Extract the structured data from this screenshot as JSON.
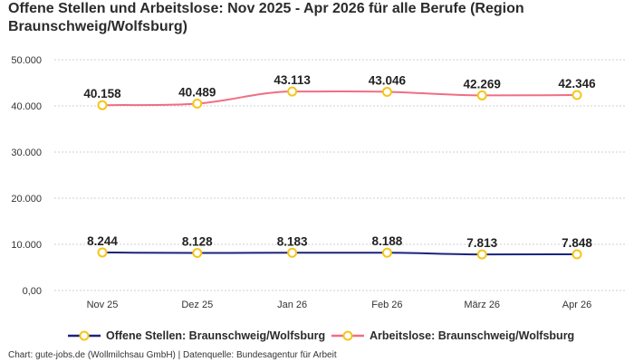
{
  "title": "Offene Stellen und Arbeitslose: Nov 2025 - Apr 2026 für alle Berufe (Region Braunschweig/Wolfsburg)",
  "footer": "Chart: gute-jobs.de (Wollmilchsau GmbH) | Datenquelle: Bundesagentur für Arbeit",
  "chart_data": {
    "type": "line",
    "title": "Offene Stellen und Arbeitslose: Nov 2025 - Apr 2026 für alle Berufe (Region Braunschweig/Wolfsburg)",
    "categories": [
      "Nov 25",
      "Dez 25",
      "Jan 26",
      "Feb 26",
      "März 26",
      "Apr 26"
    ],
    "y_ticks": [
      "0,00",
      "10.000",
      "20.000",
      "30.000",
      "40.000",
      "50.000"
    ],
    "ylim": [
      0,
      50000
    ],
    "grid": true,
    "legend_position": "bottom",
    "series": [
      {
        "name": "Offene Stellen: Braunschweig/Wolfsburg",
        "values": [
          8244,
          8128,
          8183,
          8188,
          7813,
          7848
        ],
        "labels": [
          "8.244",
          "8.128",
          "8.183",
          "8.188",
          "7.813",
          "7.848"
        ],
        "color": "#1a237e"
      },
      {
        "name": "Arbeitslose: Braunschweig/Wolfsburg",
        "values": [
          40158,
          40489,
          43113,
          43046,
          42269,
          42346
        ],
        "labels": [
          "40.158",
          "40.489",
          "43.113",
          "43.046",
          "42.269",
          "42.346"
        ],
        "color": "#f06e84"
      }
    ],
    "marker_color": "#f5c518"
  }
}
